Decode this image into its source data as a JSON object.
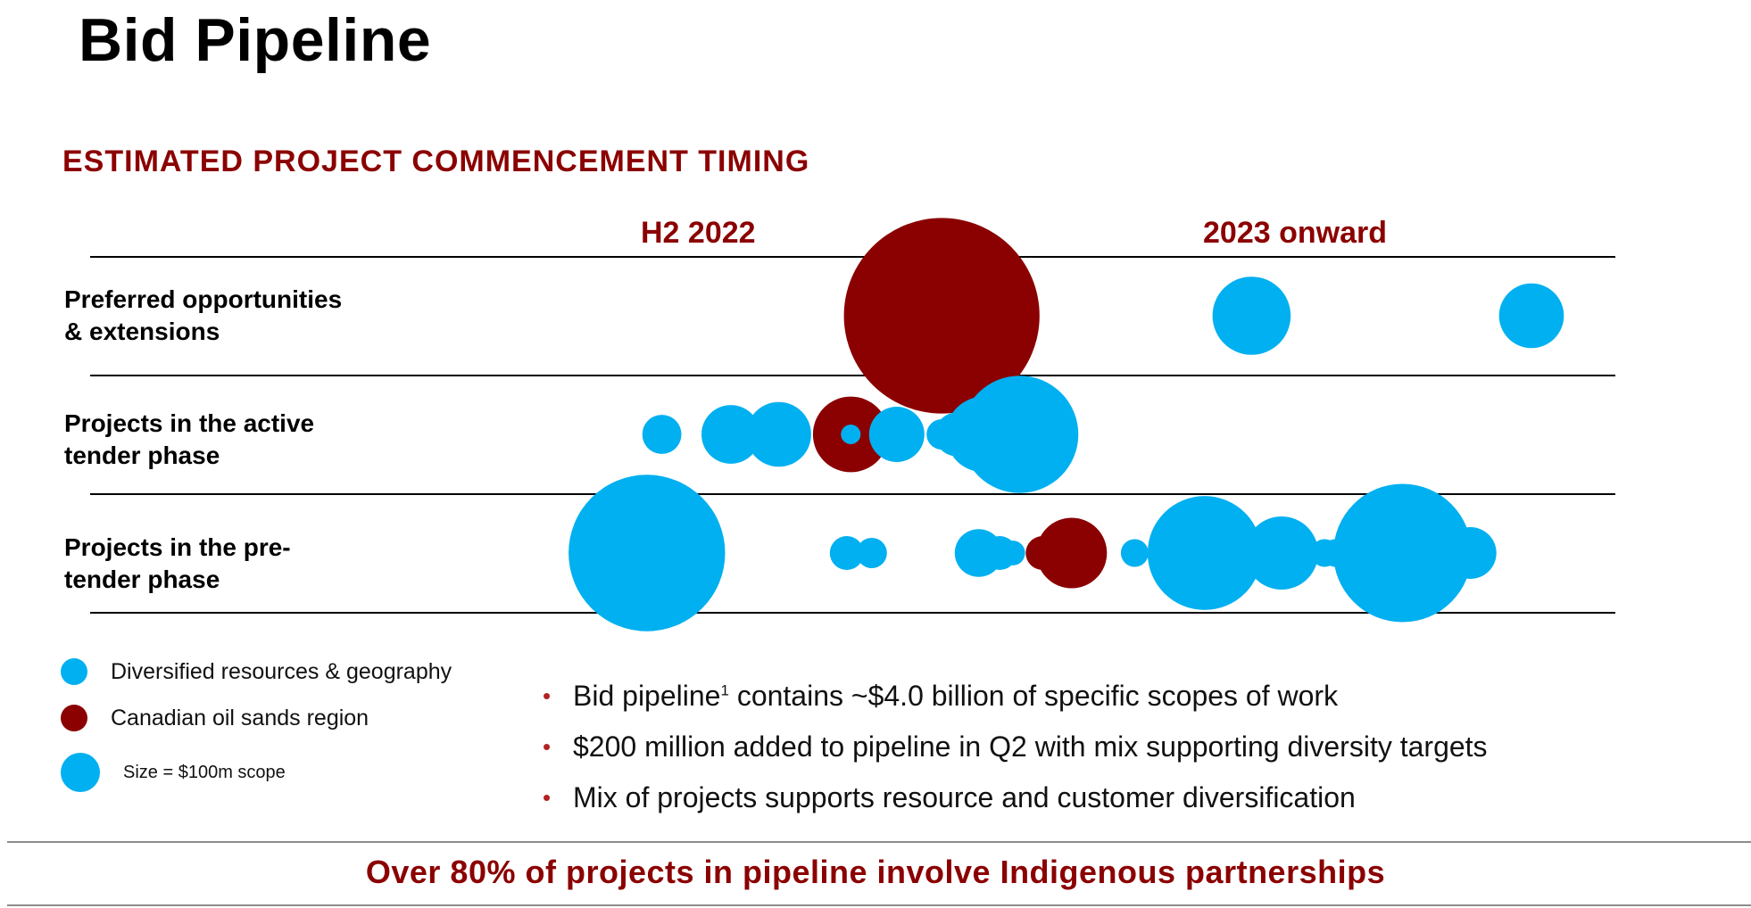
{
  "title": "Bid Pipeline",
  "section_title": "ESTIMATED PROJECT COMMENCEMENT TIMING",
  "colors": {
    "diversified": "#00b0f0",
    "oil_sands": "#8b0000",
    "heading_red": "#8b0000",
    "bullet_red": "#b22222"
  },
  "legend": {
    "diversified": "Diversified resources & geography",
    "oil_sands": "Canadian oil sands region",
    "size": "Size = $100m scope"
  },
  "bullets": {
    "b1_pre": "Bid pipeline",
    "b1_sup": "1",
    "b1_post": " contains ~$4.0 billion of specific scopes of work",
    "b2": "$200 million added to pipeline in Q2 with mix supporting diversity targets",
    "b3": "Mix of projects supports resource and customer diversification"
  },
  "footer": "Over 80% of projects in pipeline involve Indigenous partnerships",
  "chart_data": {
    "type": "scatter",
    "title": "ESTIMATED PROJECT COMMENCEMENT TIMING",
    "periods": [
      "H2 2022",
      "2023 onward"
    ],
    "rows": [
      {
        "id": "preferred",
        "label": [
          "Preferred opportunities",
          "& extensions"
        ]
      },
      {
        "id": "active",
        "label": [
          "Projects in the active",
          "tender phase"
        ]
      },
      {
        "id": "pre",
        "label": [
          "Projects in the pre-",
          "tender phase"
        ]
      }
    ],
    "x_axis": {
      "description": "relative commencement timing (0 = start of H2 2022, 100 = end of horizon)",
      "xlim": [
        0,
        100
      ]
    },
    "size_reference": {
      "label": "Size = $100m scope",
      "scope_musd": 100
    },
    "bubbles": [
      {
        "row": "preferred",
        "t": 33.5,
        "scope_musd": 500,
        "category": "oil_sands"
      },
      {
        "row": "preferred",
        "t": 64.5,
        "scope_musd": 80,
        "category": "diversified"
      },
      {
        "row": "preferred",
        "t": 92.5,
        "scope_musd": 55,
        "category": "diversified"
      },
      {
        "row": "active",
        "t": 5.5,
        "scope_musd": 20,
        "category": "diversified"
      },
      {
        "row": "active",
        "t": 12.4,
        "scope_musd": 45,
        "category": "diversified"
      },
      {
        "row": "active",
        "t": 17.2,
        "scope_musd": 55,
        "category": "diversified"
      },
      {
        "row": "active",
        "t": 23.1,
        "scope_musd": 25,
        "category": "oil_sands"
      },
      {
        "row": "active",
        "t": 24.4,
        "scope_musd": 75,
        "category": "oil_sands"
      },
      {
        "row": "active",
        "t": 24.4,
        "scope_musd": 5,
        "category": "diversified"
      },
      {
        "row": "active",
        "t": 29.0,
        "scope_musd": 40,
        "category": "diversified"
      },
      {
        "row": "active",
        "t": 33.5,
        "scope_musd": 12,
        "category": "diversified"
      },
      {
        "row": "active",
        "t": 35.0,
        "scope_musd": 25,
        "category": "diversified"
      },
      {
        "row": "active",
        "t": 37.7,
        "scope_musd": 75,
        "category": "diversified"
      },
      {
        "row": "active",
        "t": 41.3,
        "scope_musd": 180,
        "category": "diversified"
      },
      {
        "row": "active",
        "t": 45.2,
        "scope_musd": 12,
        "category": "diversified"
      },
      {
        "row": "pre",
        "t": 4.0,
        "scope_musd": 320,
        "category": "diversified"
      },
      {
        "row": "pre",
        "t": 10.4,
        "scope_musd": 10,
        "category": "diversified"
      },
      {
        "row": "pre",
        "t": 24.0,
        "scope_musd": 15,
        "category": "diversified"
      },
      {
        "row": "pre",
        "t": 26.5,
        "scope_musd": 12,
        "category": "diversified"
      },
      {
        "row": "pre",
        "t": 37.2,
        "scope_musd": 30,
        "category": "diversified"
      },
      {
        "row": "pre",
        "t": 39.3,
        "scope_musd": 15,
        "category": "diversified"
      },
      {
        "row": "pre",
        "t": 40.6,
        "scope_musd": 8,
        "category": "diversified"
      },
      {
        "row": "pre",
        "t": 43.6,
        "scope_musd": 15,
        "category": "oil_sands"
      },
      {
        "row": "pre",
        "t": 46.5,
        "scope_musd": 65,
        "category": "oil_sands"
      },
      {
        "row": "pre",
        "t": 52.8,
        "scope_musd": 10,
        "category": "diversified"
      },
      {
        "row": "pre",
        "t": 59.8,
        "scope_musd": 170,
        "category": "diversified"
      },
      {
        "row": "pre",
        "t": 64.7,
        "scope_musd": 25,
        "category": "diversified"
      },
      {
        "row": "pre",
        "t": 67.5,
        "scope_musd": 70,
        "category": "diversified"
      },
      {
        "row": "pre",
        "t": 70.2,
        "scope_musd": 10,
        "category": "diversified"
      },
      {
        "row": "pre",
        "t": 71.8,
        "scope_musd": 10,
        "category": "diversified"
      },
      {
        "row": "pre",
        "t": 72.9,
        "scope_musd": 10,
        "category": "diversified"
      },
      {
        "row": "pre",
        "t": 79.6,
        "scope_musd": 250,
        "category": "diversified"
      },
      {
        "row": "pre",
        "t": 86.4,
        "scope_musd": 35,
        "category": "diversified"
      }
    ]
  }
}
